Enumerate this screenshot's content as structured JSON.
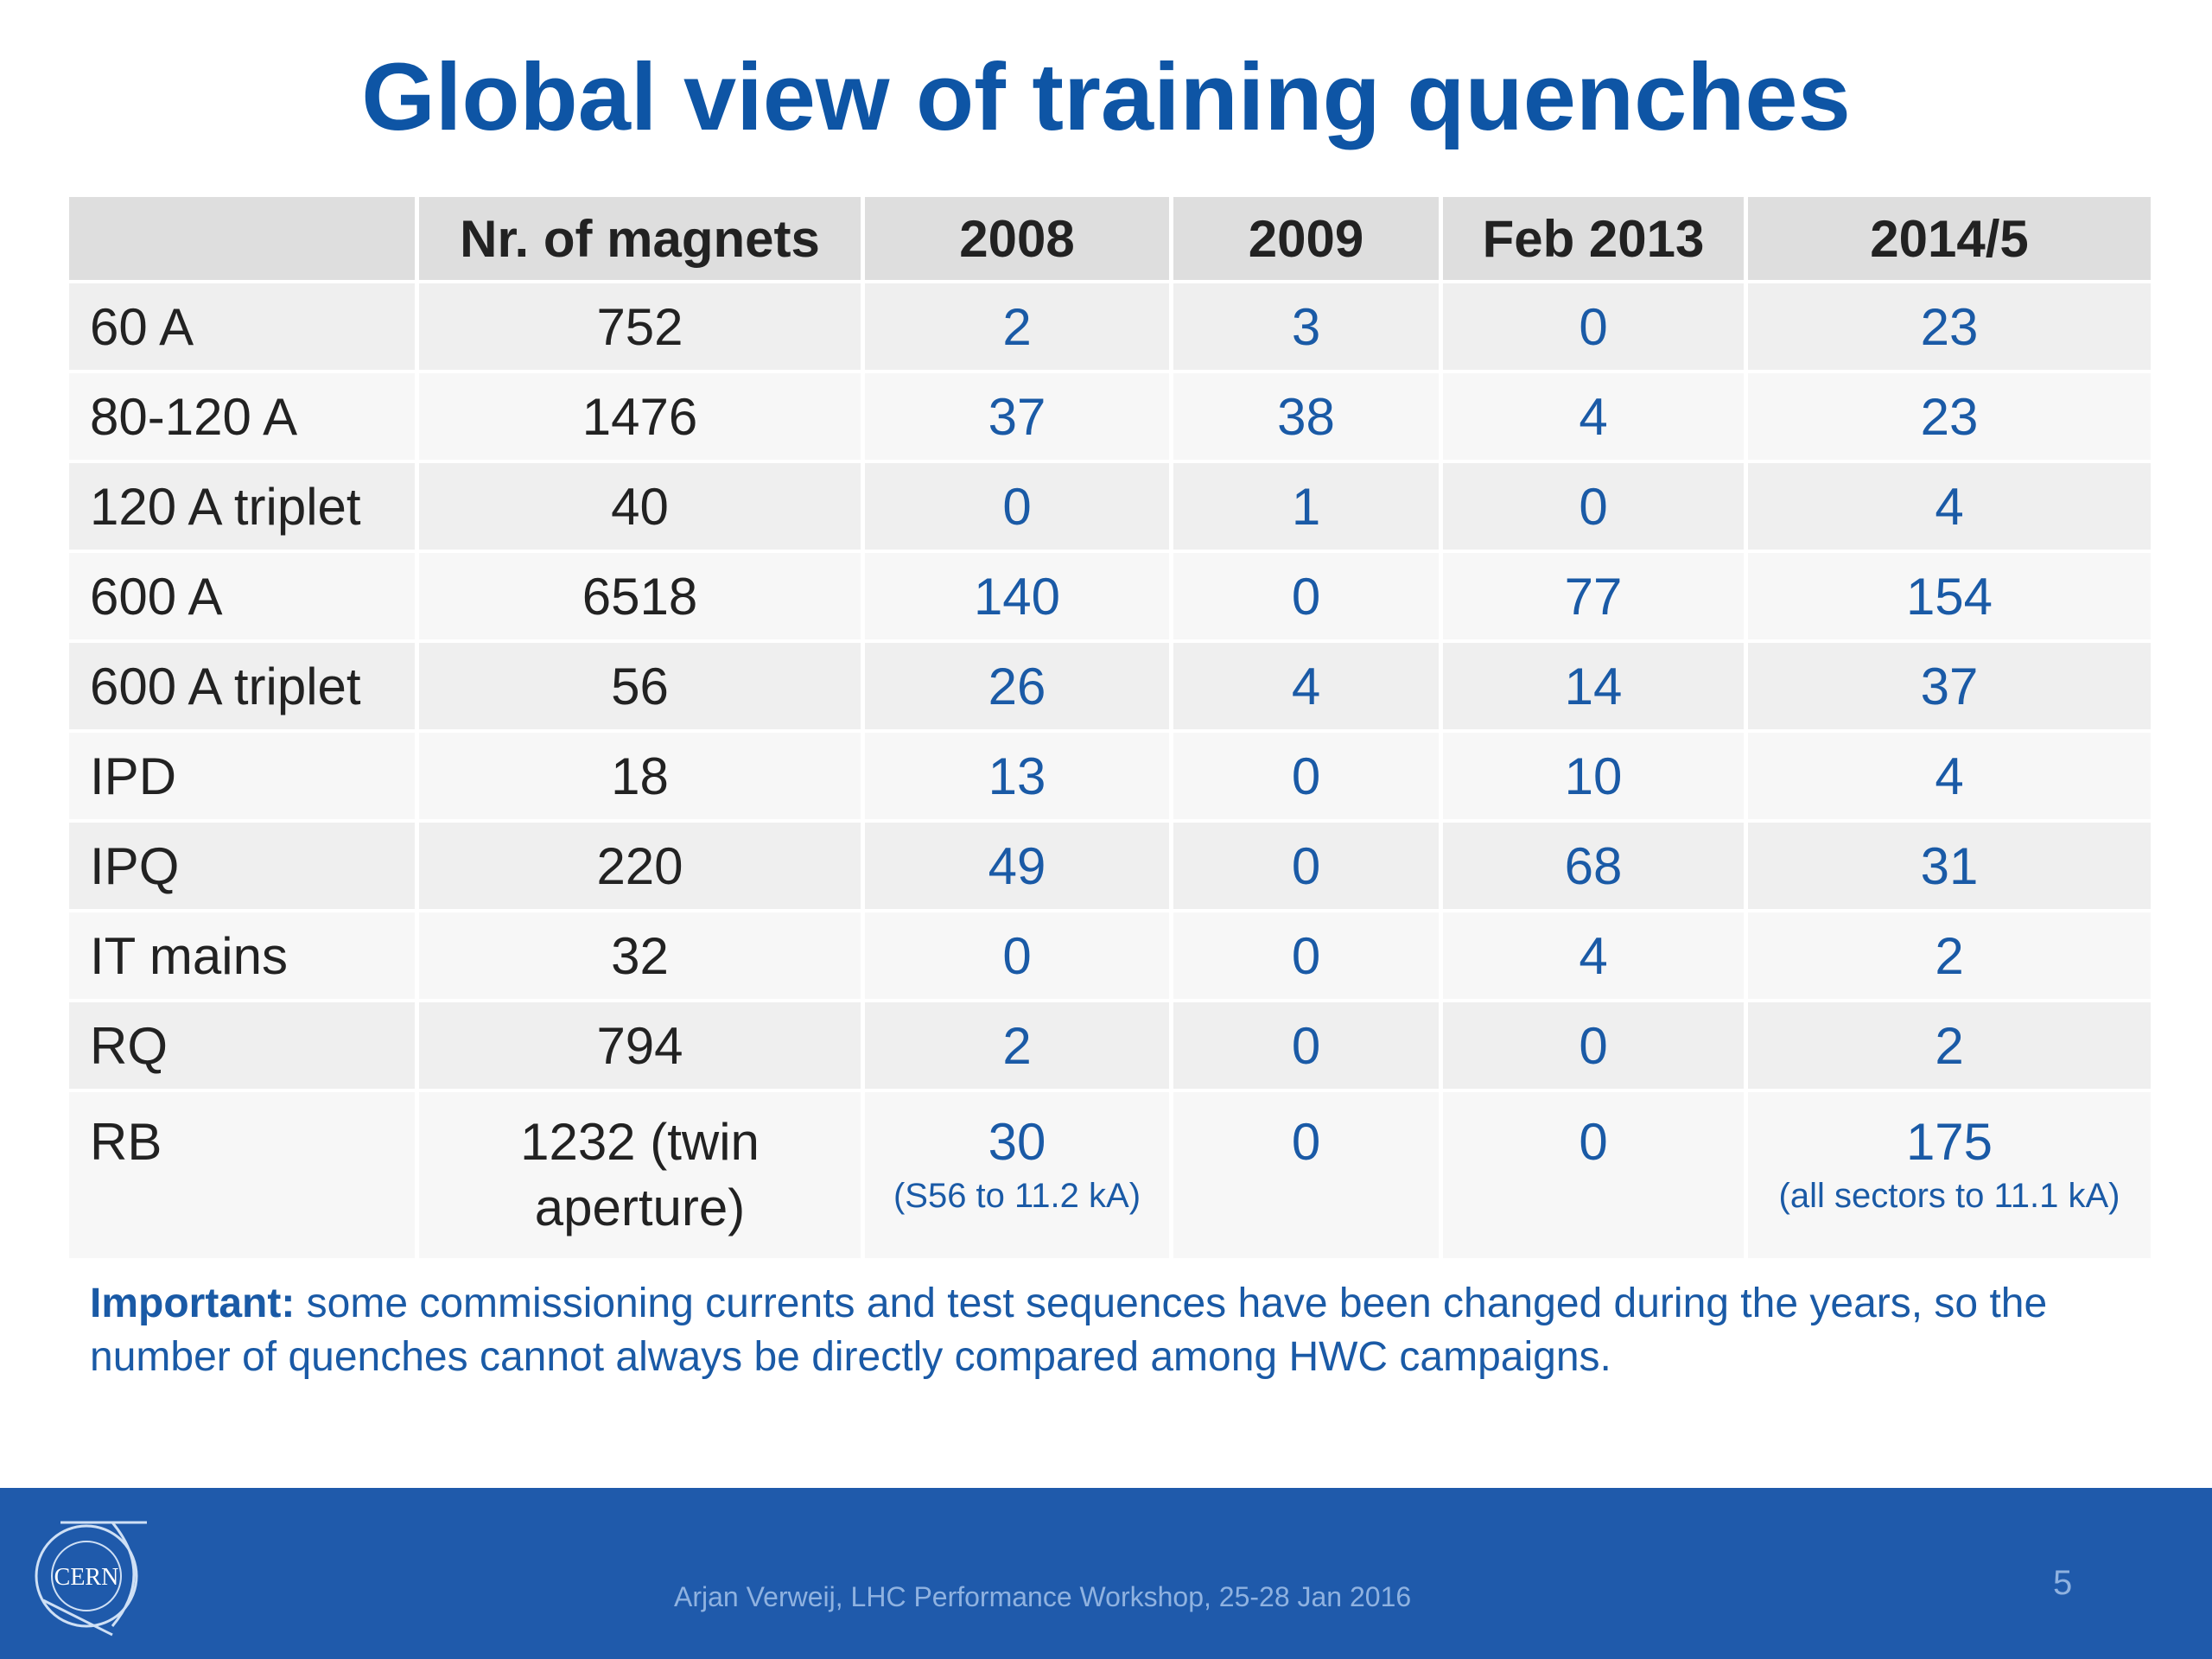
{
  "title": "Global view of training quenches",
  "table": {
    "headers": [
      "",
      "Nr. of magnets",
      "2008",
      "2009",
      "Feb 2013",
      "2014/5"
    ],
    "rows": [
      {
        "label": "60 A",
        "magnets": "752",
        "y2008": "2",
        "y2009": "3",
        "feb2013": "0",
        "y2014_5": "23"
      },
      {
        "label": "80-120 A",
        "magnets": "1476",
        "y2008": "37",
        "y2009": "38",
        "feb2013": "4",
        "y2014_5": "23"
      },
      {
        "label": "120 A triplet",
        "magnets": "40",
        "y2008": "0",
        "y2009": "1",
        "feb2013": "0",
        "y2014_5": "4"
      },
      {
        "label": "600 A",
        "magnets": "6518",
        "y2008": "140",
        "y2009": "0",
        "feb2013": "77",
        "y2014_5": "154"
      },
      {
        "label": "600 A triplet",
        "magnets": "56",
        "y2008": "26",
        "y2009": "4",
        "feb2013": "14",
        "y2014_5": "37"
      },
      {
        "label": "IPD",
        "magnets": "18",
        "y2008": "13",
        "y2009": "0",
        "feb2013": "10",
        "y2014_5": "4"
      },
      {
        "label": "IPQ",
        "magnets": "220",
        "y2008": "49",
        "y2009": "0",
        "feb2013": "68",
        "y2014_5": "31"
      },
      {
        "label": "IT mains",
        "magnets": "32",
        "y2008": "0",
        "y2009": "0",
        "feb2013": "4",
        "y2014_5": "2"
      },
      {
        "label": "RQ",
        "magnets": "794",
        "y2008": "2",
        "y2009": "0",
        "feb2013": "0",
        "y2014_5": "2"
      },
      {
        "label": "RB",
        "magnets": "1232 (twin aperture)",
        "y2008": "30",
        "y2008_note": "(S56 to 11.2 kA)",
        "y2009": "0",
        "feb2013": "0",
        "y2014_5": "175",
        "y2014_5_note": "(all sectors to 11.1 kA)"
      }
    ]
  },
  "note": {
    "bold": "Important:",
    "text": " some commissioning currents and test sequences have been changed during the years, so the number of quenches cannot always be directly compared among HWC campaigns."
  },
  "footer": {
    "logo_text": "CERN",
    "credit": "Arjan Verweij, LHC Performance Workshop, 25-28 Jan 2016",
    "page_number": "5"
  },
  "colors": {
    "title": "#0e55a5",
    "value_text": "#1a5aa6",
    "footer_bg": "#1f5aab"
  }
}
